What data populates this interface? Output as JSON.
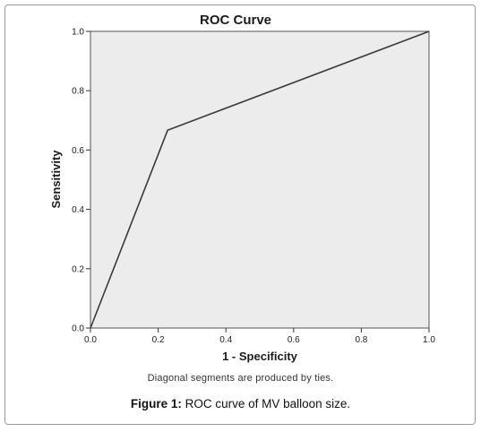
{
  "chart_data": {
    "type": "line",
    "title": "ROC Curve",
    "xlabel": "1 - Specificity",
    "ylabel": "Sensitivity",
    "xlim": [
      0.0,
      1.0
    ],
    "ylim": [
      0.0,
      1.0
    ],
    "x_ticks": [
      "0.0",
      "0.2",
      "0.4",
      "0.6",
      "0.8",
      "1.0"
    ],
    "y_ticks": [
      "0.0",
      "0.2",
      "0.4",
      "0.6",
      "0.8",
      "1.0"
    ],
    "grid": false,
    "series": [
      {
        "x": [
          0.0,
          0.228,
          1.0
        ],
        "y": [
          0.0,
          0.667,
          1.0
        ],
        "color": "#3a3a3a"
      }
    ],
    "plot_background": "#ececec"
  },
  "footnote": "Diagonal segments are produced by ties.",
  "caption": {
    "prefix": "Figure 1:",
    "text": " ROC curve of MV balloon size."
  }
}
